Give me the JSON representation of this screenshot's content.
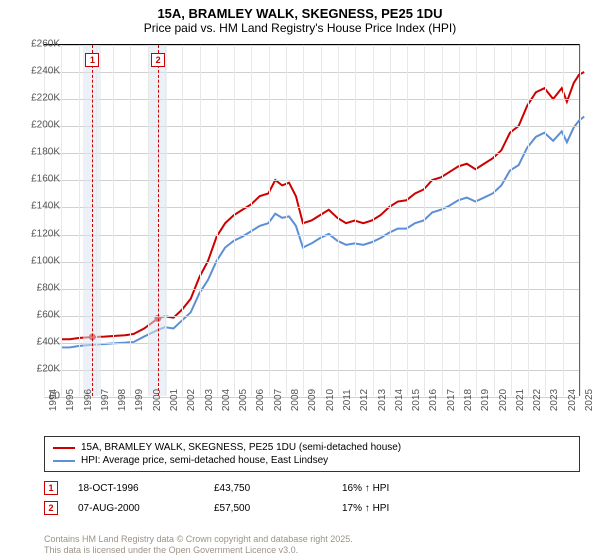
{
  "title": "15A, BRAMLEY WALK, SKEGNESS, PE25 1DU",
  "subtitle": "Price paid vs. HM Land Registry's House Price Index (HPI)",
  "chart": {
    "type": "line",
    "background_color": "#ffffff",
    "grid_color": "#d0d0d0",
    "xgrid_color": "#e8e8e8",
    "shade_color": "#dbe5f1",
    "x_start_year": 1994,
    "x_end_year": 2025,
    "years": [
      1994,
      1995,
      1996,
      1997,
      1998,
      1999,
      2000,
      2001,
      2002,
      2003,
      2004,
      2005,
      2006,
      2007,
      2008,
      2009,
      2010,
      2011,
      2012,
      2013,
      2014,
      2015,
      2016,
      2017,
      2018,
      2019,
      2020,
      2021,
      2022,
      2023,
      2024,
      2025
    ],
    "ylim": [
      0,
      260000
    ],
    "ytick_step": 20000,
    "yticks": [
      0,
      20000,
      40000,
      60000,
      80000,
      100000,
      120000,
      140000,
      160000,
      180000,
      200000,
      220000,
      240000,
      260000
    ],
    "ytick_labels": [
      "£0",
      "£20K",
      "£40K",
      "£60K",
      "£80K",
      "£100K",
      "£120K",
      "£140K",
      "£160K",
      "£180K",
      "£200K",
      "£220K",
      "£240K",
      "£260K"
    ],
    "label_fontsize": 10,
    "line_width": 2,
    "series": [
      {
        "name": "15A, BRAMLEY WALK, SKEGNESS, PE25 1DU (semi-detached house)",
        "color": "#cc0000",
        "points": [
          [
            1995.0,
            42000
          ],
          [
            1995.5,
            42000
          ],
          [
            1996.0,
            43000
          ],
          [
            1996.8,
            43750
          ],
          [
            1997.5,
            44000
          ],
          [
            1998.0,
            44500
          ],
          [
            1998.7,
            45000
          ],
          [
            1999.2,
            46000
          ],
          [
            1999.8,
            50000
          ],
          [
            2000.6,
            57500
          ],
          [
            2001.0,
            59000
          ],
          [
            2001.5,
            58000
          ],
          [
            2002.0,
            64000
          ],
          [
            2002.5,
            72000
          ],
          [
            2003.0,
            88000
          ],
          [
            2003.5,
            100000
          ],
          [
            2004.0,
            118000
          ],
          [
            2004.5,
            128000
          ],
          [
            2005.0,
            134000
          ],
          [
            2005.5,
            138000
          ],
          [
            2006.0,
            142000
          ],
          [
            2006.5,
            148000
          ],
          [
            2007.0,
            150000
          ],
          [
            2007.4,
            160000
          ],
          [
            2007.8,
            156000
          ],
          [
            2008.2,
            158000
          ],
          [
            2008.6,
            148000
          ],
          [
            2009.0,
            128000
          ],
          [
            2009.5,
            130000
          ],
          [
            2010.0,
            134000
          ],
          [
            2010.5,
            138000
          ],
          [
            2011.0,
            132000
          ],
          [
            2011.5,
            128000
          ],
          [
            2012.0,
            130000
          ],
          [
            2012.5,
            128000
          ],
          [
            2013.0,
            130000
          ],
          [
            2013.5,
            134000
          ],
          [
            2014.0,
            140000
          ],
          [
            2014.5,
            144000
          ],
          [
            2015.0,
            145000
          ],
          [
            2015.5,
            150000
          ],
          [
            2016.0,
            153000
          ],
          [
            2016.5,
            160000
          ],
          [
            2017.0,
            162000
          ],
          [
            2017.5,
            166000
          ],
          [
            2018.0,
            170000
          ],
          [
            2018.5,
            172000
          ],
          [
            2019.0,
            168000
          ],
          [
            2019.5,
            172000
          ],
          [
            2020.0,
            176000
          ],
          [
            2020.5,
            182000
          ],
          [
            2021.0,
            195000
          ],
          [
            2021.5,
            200000
          ],
          [
            2022.0,
            215000
          ],
          [
            2022.5,
            225000
          ],
          [
            2023.0,
            228000
          ],
          [
            2023.5,
            220000
          ],
          [
            2024.0,
            228000
          ],
          [
            2024.3,
            218000
          ],
          [
            2024.7,
            232000
          ],
          [
            2025.0,
            238000
          ],
          [
            2025.3,
            240000
          ]
        ],
        "sale_markers": [
          {
            "year": 1996.8,
            "value": 43750
          },
          {
            "year": 2000.6,
            "value": 57500
          }
        ]
      },
      {
        "name": "HPI: Average price, semi-detached house, East Lindsey",
        "color": "#5b8fd6",
        "points": [
          [
            1995.0,
            36000
          ],
          [
            1995.5,
            36000
          ],
          [
            1996.0,
            37000
          ],
          [
            1996.8,
            38000
          ],
          [
            1997.5,
            38500
          ],
          [
            1998.0,
            39000
          ],
          [
            1998.7,
            39500
          ],
          [
            1999.2,
            40000
          ],
          [
            1999.8,
            44000
          ],
          [
            2000.6,
            49000
          ],
          [
            2001.0,
            51000
          ],
          [
            2001.5,
            50000
          ],
          [
            2002.0,
            56000
          ],
          [
            2002.5,
            62000
          ],
          [
            2003.0,
            76000
          ],
          [
            2003.5,
            86000
          ],
          [
            2004.0,
            100000
          ],
          [
            2004.5,
            110000
          ],
          [
            2005.0,
            115000
          ],
          [
            2005.5,
            118000
          ],
          [
            2006.0,
            122000
          ],
          [
            2006.5,
            126000
          ],
          [
            2007.0,
            128000
          ],
          [
            2007.4,
            135000
          ],
          [
            2007.8,
            132000
          ],
          [
            2008.2,
            133000
          ],
          [
            2008.6,
            126000
          ],
          [
            2009.0,
            110000
          ],
          [
            2009.5,
            113000
          ],
          [
            2010.0,
            117000
          ],
          [
            2010.5,
            120000
          ],
          [
            2011.0,
            115000
          ],
          [
            2011.5,
            112000
          ],
          [
            2012.0,
            113000
          ],
          [
            2012.5,
            112000
          ],
          [
            2013.0,
            114000
          ],
          [
            2013.5,
            117000
          ],
          [
            2014.0,
            121000
          ],
          [
            2014.5,
            124000
          ],
          [
            2015.0,
            124000
          ],
          [
            2015.5,
            128000
          ],
          [
            2016.0,
            130000
          ],
          [
            2016.5,
            136000
          ],
          [
            2017.0,
            138000
          ],
          [
            2017.5,
            141000
          ],
          [
            2018.0,
            145000
          ],
          [
            2018.5,
            147000
          ],
          [
            2019.0,
            144000
          ],
          [
            2019.5,
            147000
          ],
          [
            2020.0,
            150000
          ],
          [
            2020.5,
            156000
          ],
          [
            2021.0,
            167000
          ],
          [
            2021.5,
            171000
          ],
          [
            2022.0,
            184000
          ],
          [
            2022.5,
            192000
          ],
          [
            2023.0,
            195000
          ],
          [
            2023.5,
            189000
          ],
          [
            2024.0,
            196000
          ],
          [
            2024.3,
            188000
          ],
          [
            2024.7,
            199000
          ],
          [
            2025.0,
            204000
          ],
          [
            2025.3,
            207000
          ]
        ]
      }
    ],
    "sales": [
      {
        "badge": "1",
        "year": 1996.8,
        "date": "18-OCT-1996",
        "price": "£43,750",
        "hpi": "16% ↑ HPI"
      },
      {
        "badge": "2",
        "year": 2000.6,
        "date": "07-AUG-2000",
        "price": "£57,500",
        "hpi": "17% ↑ HPI"
      }
    ]
  },
  "legend": {
    "items": [
      {
        "color": "#cc0000",
        "label": "15A, BRAMLEY WALK, SKEGNESS, PE25 1DU (semi-detached house)"
      },
      {
        "color": "#5b8fd6",
        "label": "HPI: Average price, semi-detached house, East Lindsey"
      }
    ]
  },
  "footer": {
    "line1": "Contains HM Land Registry data © Crown copyright and database right 2025.",
    "line2": "This data is licensed under the Open Government Licence v3.0."
  }
}
